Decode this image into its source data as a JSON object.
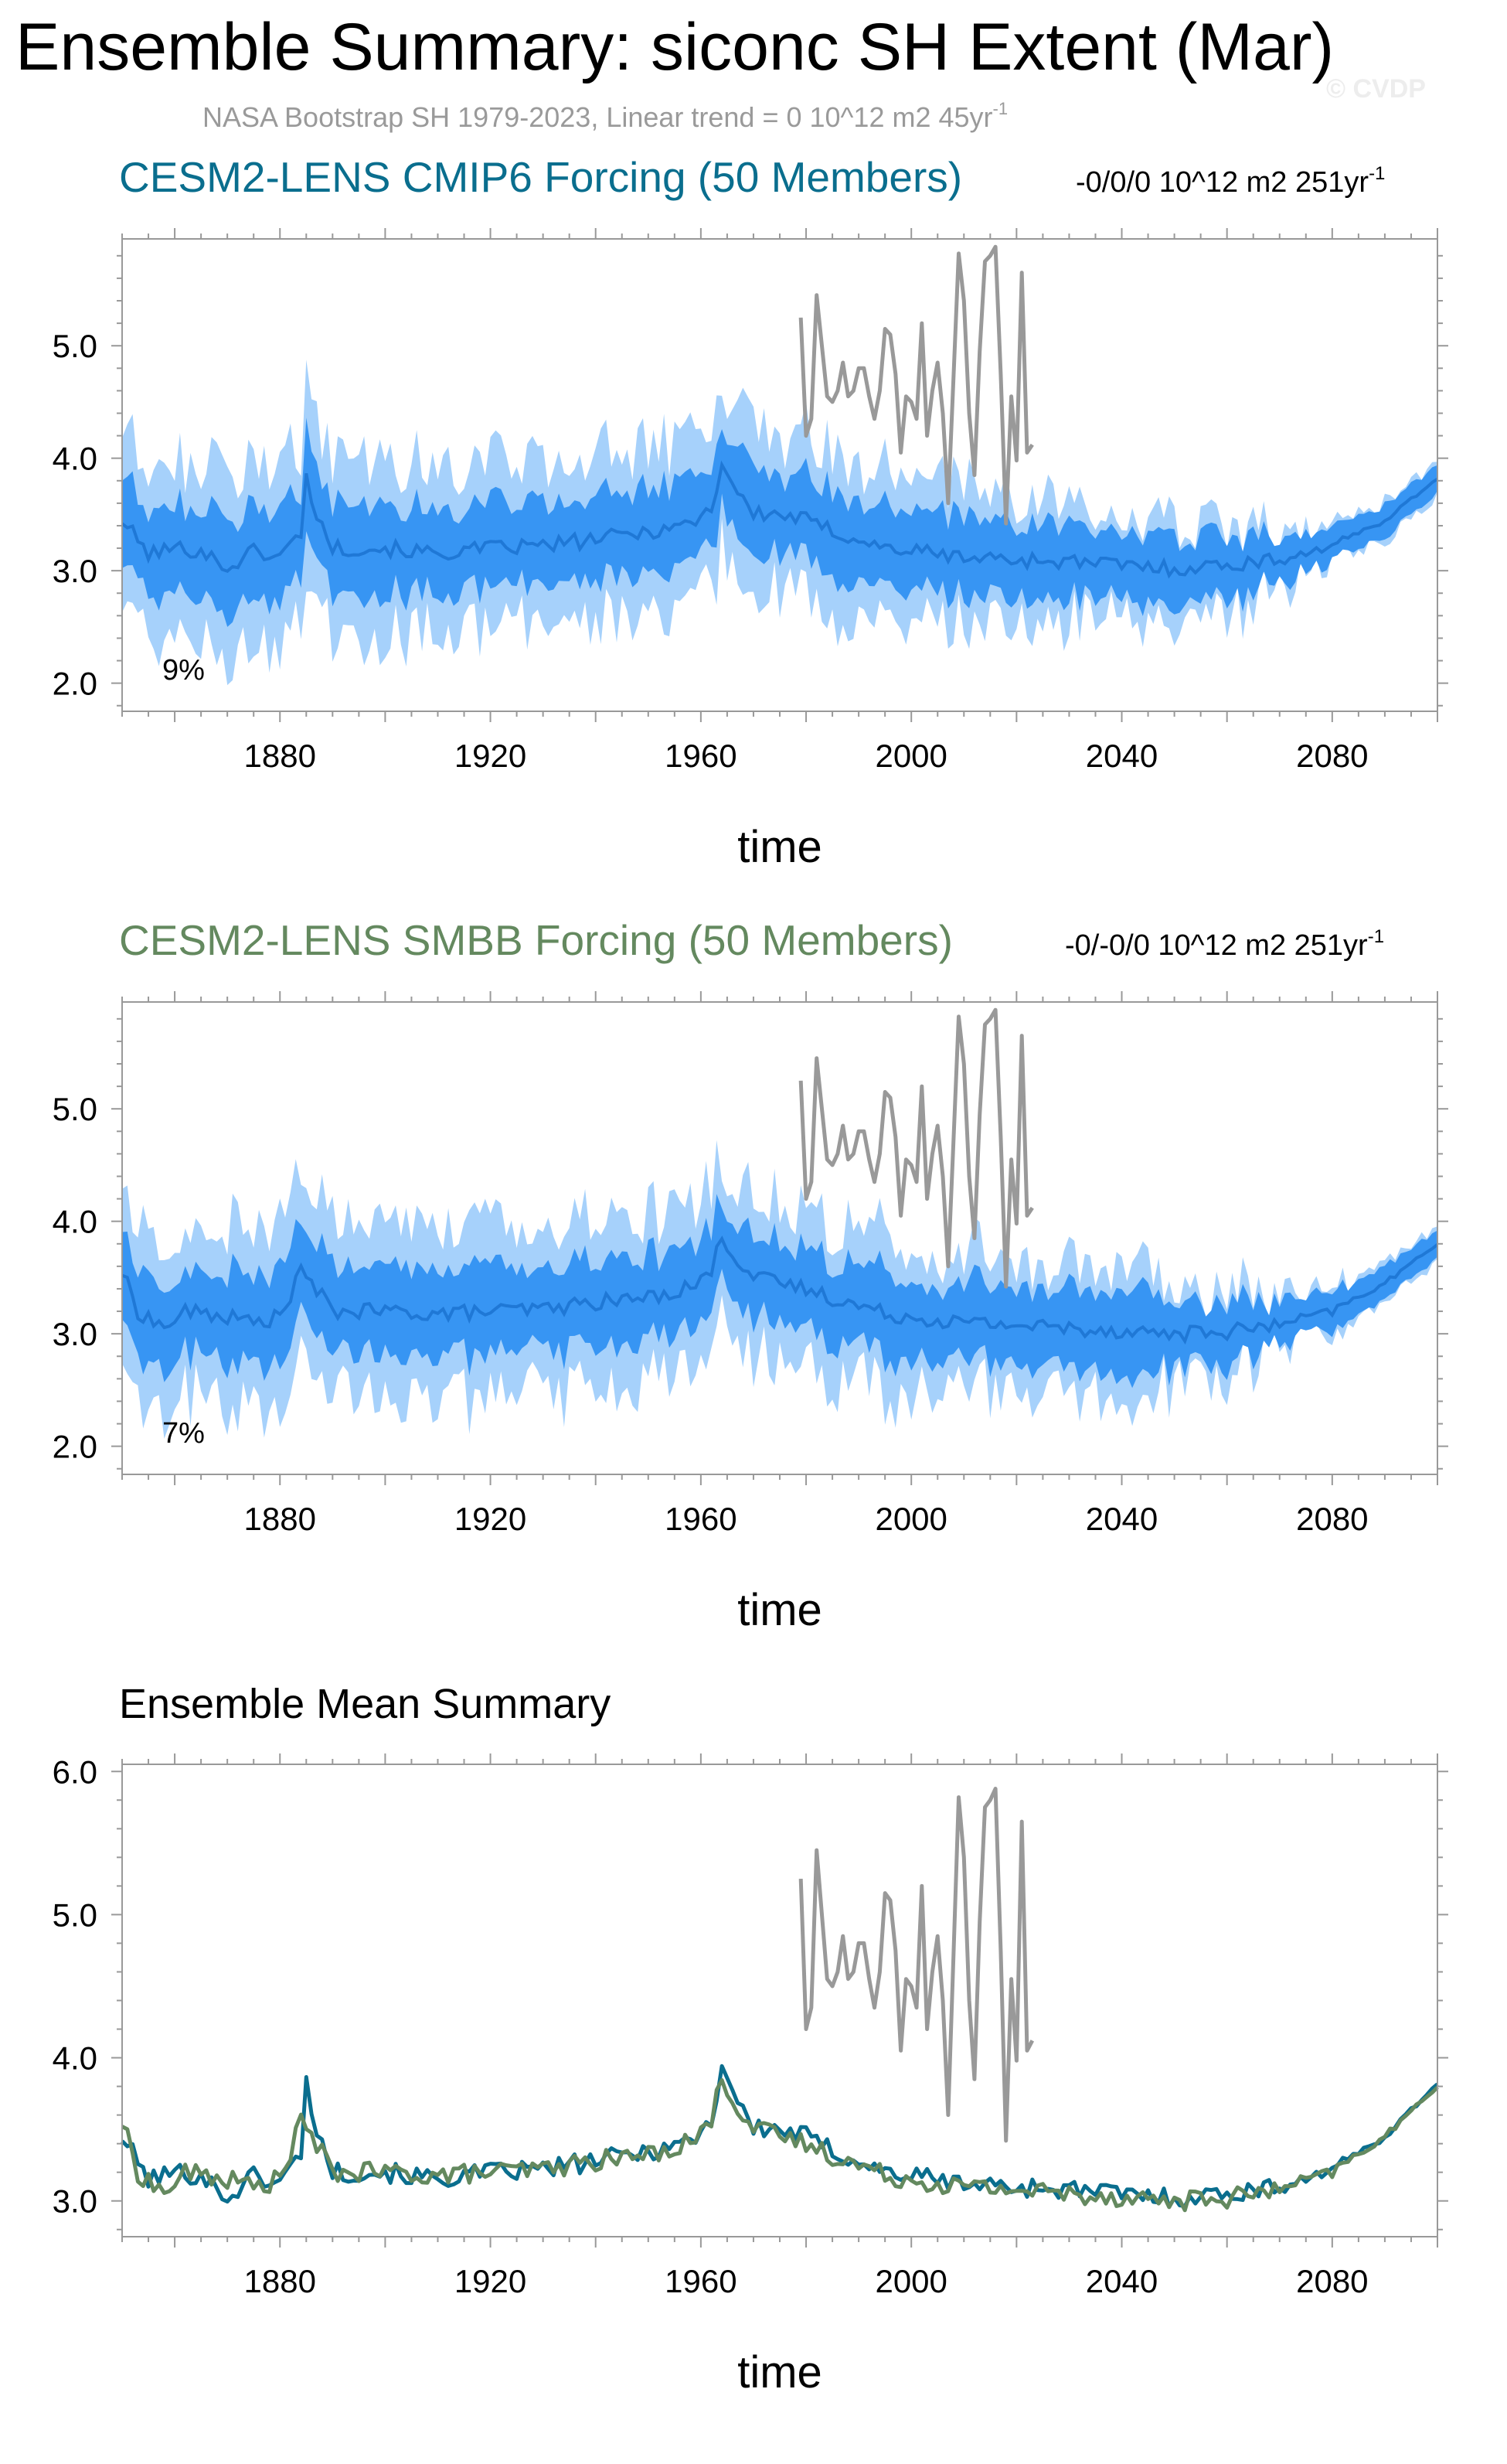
{
  "title": "Ensemble Summary: siconc SH Extent (Mar)",
  "subtitle": "NASA Bootstrap SH 1979-2023, Linear trend = 0 10^12 m2 45yr",
  "subtitle_sup": "-1",
  "watermark": "© CVDP",
  "colors": {
    "cmip6_title": "#0a6e8e",
    "smbb_title": "#64895f",
    "band_outer": "#a6d1fb",
    "band_inner": "#3795f3",
    "mean_line": "#1f78d6",
    "obs": "#999999",
    "cmip6_mean": "#0a6e8e",
    "smbb_mean": "#64895f"
  },
  "chart_data": [
    {
      "type": "area",
      "panel_title": "CESM2-LENS CMIP6 Forcing (50 Members)",
      "trend_text": "-0/0/0 10^12 m2 251yr",
      "trend_sup": "-1",
      "percent_label": "9%",
      "xlabel": "time",
      "xlim": [
        1850,
        2100
      ],
      "ylim": [
        1.75,
        5.95
      ],
      "x_ticks": [
        1880,
        1920,
        1960,
        2000,
        2040,
        2080
      ],
      "y_ticks": [
        2.0,
        3.0,
        4.0,
        5.0
      ],
      "y_tick_labels": [
        "2.0",
        "3.0",
        "4.0",
        "5.0"
      ],
      "series": [
        {
          "name": "ensemble mean",
          "mean_knots": [
            [
              1850,
              3.45
            ],
            [
              1855,
              3.15
            ],
            [
              1860,
              3.2
            ],
            [
              1865,
              3.18
            ],
            [
              1870,
              3.02
            ],
            [
              1875,
              3.18
            ],
            [
              1880,
              3.12
            ],
            [
              1884,
              3.35
            ],
            [
              1885,
              3.82
            ],
            [
              1887,
              3.5
            ],
            [
              1890,
              3.2
            ],
            [
              1900,
              3.2
            ],
            [
              1910,
              3.15
            ],
            [
              1920,
              3.2
            ],
            [
              1930,
              3.22
            ],
            [
              1940,
              3.28
            ],
            [
              1950,
              3.35
            ],
            [
              1958,
              3.42
            ],
            [
              1962,
              3.55
            ],
            [
              1964,
              3.95
            ],
            [
              1966,
              3.78
            ],
            [
              1970,
              3.5
            ],
            [
              1975,
              3.5
            ],
            [
              1980,
              3.45
            ],
            [
              1985,
              3.35
            ],
            [
              1990,
              3.28
            ],
            [
              1995,
              3.2
            ],
            [
              2000,
              3.18
            ],
            [
              2010,
              3.12
            ],
            [
              2020,
              3.1
            ],
            [
              2030,
              3.08
            ],
            [
              2040,
              3.05
            ],
            [
              2050,
              3.02
            ],
            [
              2060,
              3.05
            ],
            [
              2070,
              3.1
            ],
            [
              2080,
              3.22
            ],
            [
              2090,
              3.45
            ],
            [
              2100,
              3.82
            ]
          ]
        },
        {
          "name": "inner band halfwidth",
          "knots": [
            [
              1850,
              0.4
            ],
            [
              2040,
              0.35
            ],
            [
              2060,
              0.28
            ],
            [
              2075,
              0.18
            ],
            [
              2100,
              0.12
            ]
          ]
        },
        {
          "name": "outer band halfwidth",
          "knots": [
            [
              1850,
              0.8
            ],
            [
              1980,
              0.72
            ],
            [
              2040,
              0.55
            ],
            [
              2060,
              0.4
            ],
            [
              2075,
              0.22
            ],
            [
              2100,
              0.15
            ]
          ]
        }
      ]
    },
    {
      "type": "area",
      "panel_title": "CESM2-LENS SMBB Forcing (50 Members)",
      "trend_text": "-0/-0/0 10^12 m2 251yr",
      "trend_sup": "-1",
      "percent_label": "7%",
      "xlabel": "time",
      "xlim": [
        1850,
        2100
      ],
      "ylim": [
        1.75,
        5.95
      ],
      "x_ticks": [
        1880,
        1920,
        1960,
        2000,
        2040,
        2080
      ],
      "y_ticks": [
        2.0,
        3.0,
        4.0,
        5.0
      ],
      "y_tick_labels": [
        "2.0",
        "3.0",
        "4.0",
        "5.0"
      ],
      "series": [
        {
          "name": "ensemble mean",
          "mean_knots": [
            [
              1850,
              3.55
            ],
            [
              1853,
              3.2
            ],
            [
              1858,
              3.05
            ],
            [
              1862,
              3.2
            ],
            [
              1870,
              3.15
            ],
            [
              1875,
              3.1
            ],
            [
              1880,
              3.15
            ],
            [
              1884,
              3.55
            ],
            [
              1886,
              3.45
            ],
            [
              1890,
              3.2
            ],
            [
              1900,
              3.2
            ],
            [
              1910,
              3.18
            ],
            [
              1920,
              3.2
            ],
            [
              1930,
              3.22
            ],
            [
              1940,
              3.28
            ],
            [
              1950,
              3.32
            ],
            [
              1958,
              3.42
            ],
            [
              1962,
              3.55
            ],
            [
              1964,
              3.88
            ],
            [
              1966,
              3.72
            ],
            [
              1970,
              3.5
            ],
            [
              1975,
              3.45
            ],
            [
              1980,
              3.4
            ],
            [
              1985,
              3.32
            ],
            [
              1990,
              3.25
            ],
            [
              1995,
              3.18
            ],
            [
              2000,
              3.15
            ],
            [
              2010,
              3.1
            ],
            [
              2020,
              3.08
            ],
            [
              2030,
              3.05
            ],
            [
              2040,
              3.03
            ],
            [
              2050,
              3.0
            ],
            [
              2060,
              3.02
            ],
            [
              2070,
              3.08
            ],
            [
              2080,
              3.2
            ],
            [
              2090,
              3.45
            ],
            [
              2100,
              3.8
            ]
          ]
        },
        {
          "name": "inner band halfwidth",
          "knots": [
            [
              1850,
              0.4
            ],
            [
              2040,
              0.35
            ],
            [
              2060,
              0.28
            ],
            [
              2075,
              0.18
            ],
            [
              2100,
              0.12
            ]
          ]
        },
        {
          "name": "outer band halfwidth",
          "knots": [
            [
              1850,
              0.8
            ],
            [
              1980,
              0.72
            ],
            [
              2040,
              0.55
            ],
            [
              2060,
              0.4
            ],
            [
              2075,
              0.22
            ],
            [
              2100,
              0.15
            ]
          ]
        }
      ]
    },
    {
      "type": "line",
      "panel_title": "Ensemble Mean Summary",
      "xlabel": "time",
      "xlim": [
        1850,
        2100
      ],
      "ylim": [
        2.75,
        6.05
      ],
      "x_ticks": [
        1880,
        1920,
        1960,
        2000,
        2040,
        2080
      ],
      "y_ticks": [
        3.0,
        4.0,
        5.0,
        6.0
      ],
      "y_tick_labels": [
        "3.0",
        "4.0",
        "5.0",
        "6.0"
      ],
      "series": [
        {
          "name": "CESM2-LENS CMIP6 ensemble mean",
          "mean_knots": [
            [
              1850,
              3.45
            ],
            [
              1855,
              3.15
            ],
            [
              1860,
              3.2
            ],
            [
              1865,
              3.18
            ],
            [
              1870,
              3.02
            ],
            [
              1875,
              3.18
            ],
            [
              1880,
              3.12
            ],
            [
              1884,
              3.35
            ],
            [
              1885,
              3.82
            ],
            [
              1887,
              3.5
            ],
            [
              1890,
              3.2
            ],
            [
              1900,
              3.2
            ],
            [
              1910,
              3.15
            ],
            [
              1920,
              3.2
            ],
            [
              1930,
              3.22
            ],
            [
              1940,
              3.28
            ],
            [
              1950,
              3.35
            ],
            [
              1958,
              3.42
            ],
            [
              1962,
              3.55
            ],
            [
              1964,
              3.95
            ],
            [
              1966,
              3.78
            ],
            [
              1970,
              3.5
            ],
            [
              1975,
              3.5
            ],
            [
              1980,
              3.45
            ],
            [
              1985,
              3.35
            ],
            [
              1990,
              3.28
            ],
            [
              1995,
              3.2
            ],
            [
              2000,
              3.18
            ],
            [
              2010,
              3.12
            ],
            [
              2020,
              3.1
            ],
            [
              2030,
              3.08
            ],
            [
              2040,
              3.05
            ],
            [
              2050,
              3.02
            ],
            [
              2060,
              3.05
            ],
            [
              2070,
              3.1
            ],
            [
              2080,
              3.22
            ],
            [
              2090,
              3.45
            ],
            [
              2100,
              3.82
            ]
          ]
        },
        {
          "name": "CESM2-LENS SMBB ensemble mean",
          "mean_knots": [
            [
              1850,
              3.55
            ],
            [
              1853,
              3.2
            ],
            [
              1858,
              3.05
            ],
            [
              1862,
              3.2
            ],
            [
              1870,
              3.15
            ],
            [
              1875,
              3.1
            ],
            [
              1880,
              3.15
            ],
            [
              1884,
              3.55
            ],
            [
              1886,
              3.45
            ],
            [
              1890,
              3.2
            ],
            [
              1900,
              3.2
            ],
            [
              1910,
              3.18
            ],
            [
              1920,
              3.2
            ],
            [
              1930,
              3.22
            ],
            [
              1940,
              3.28
            ],
            [
              1950,
              3.32
            ],
            [
              1958,
              3.42
            ],
            [
              1962,
              3.55
            ],
            [
              1964,
              3.88
            ],
            [
              1966,
              3.72
            ],
            [
              1970,
              3.5
            ],
            [
              1975,
              3.45
            ],
            [
              1980,
              3.4
            ],
            [
              1985,
              3.32
            ],
            [
              1990,
              3.25
            ],
            [
              1995,
              3.18
            ],
            [
              2000,
              3.15
            ],
            [
              2010,
              3.1
            ],
            [
              2020,
              3.08
            ],
            [
              2030,
              3.05
            ],
            [
              2040,
              3.03
            ],
            [
              2050,
              3.0
            ],
            [
              2060,
              3.02
            ],
            [
              2070,
              3.08
            ],
            [
              2080,
              3.2
            ],
            [
              2090,
              3.45
            ],
            [
              2100,
              3.8
            ]
          ]
        }
      ]
    }
  ],
  "observations": {
    "name": "NASA Bootstrap SH",
    "x": [
      1979,
      1980,
      1981,
      1982,
      1983,
      1984,
      1985,
      1986,
      1987,
      1988,
      1989,
      1990,
      1991,
      1992,
      1993,
      1994,
      1995,
      1996,
      1997,
      1998,
      1999,
      2000,
      2001,
      2002,
      2003,
      2004,
      2005,
      2006,
      2007,
      2008,
      2009,
      2010,
      2011,
      2012,
      2013,
      2014,
      2015,
      2016,
      2017,
      2018,
      2019,
      2020,
      2021,
      2022,
      2023
    ],
    "values": [
      5.25,
      4.2,
      4.35,
      5.45,
      5.0,
      4.55,
      4.5,
      4.6,
      4.85,
      4.55,
      4.6,
      4.8,
      4.8,
      4.55,
      4.35,
      4.6,
      5.15,
      5.1,
      4.75,
      4.05,
      4.55,
      4.5,
      4.35,
      5.2,
      4.2,
      4.6,
      4.85,
      4.4,
      3.6,
      4.7,
      5.82,
      5.4,
      4.4,
      3.85,
      4.95,
      5.75,
      5.8,
      5.88,
      4.75,
      3.42,
      4.55,
      3.98,
      5.65,
      4.05,
      4.12
    ]
  }
}
